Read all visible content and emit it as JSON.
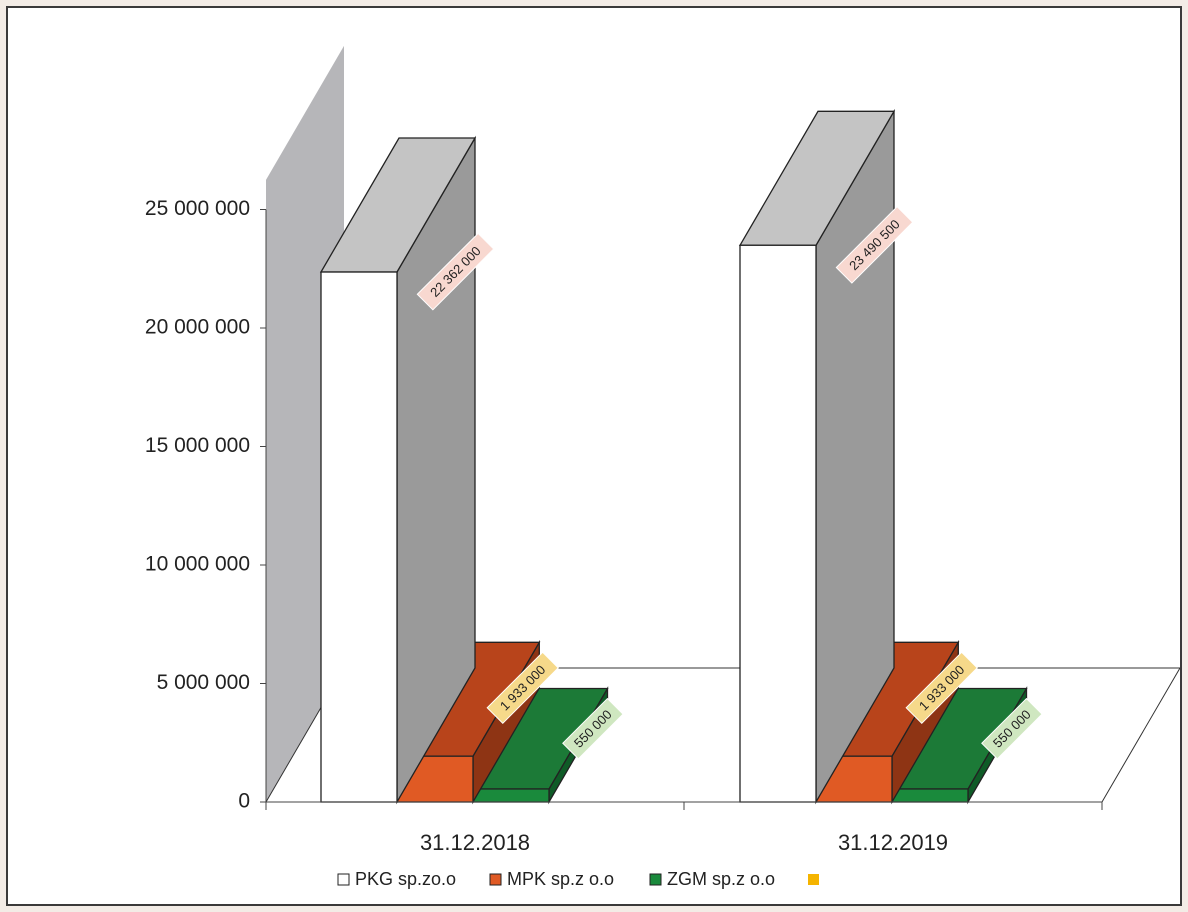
{
  "chart_data": {
    "type": "bar",
    "style": "3d-clustered-column",
    "categories": [
      "31.12.2018",
      "31.12.2019"
    ],
    "series": [
      {
        "name": "PKG sp.zo.o",
        "values": [
          22362000,
          23490500
        ],
        "labels": [
          "22 362 000",
          "23 490 500"
        ],
        "color": "#ffffff",
        "side_color": "#9a9a9a",
        "top_color": "#c4c4c4",
        "label_bg": "#f8d8d0"
      },
      {
        "name": "MPK sp.z o.o",
        "values": [
          1933000,
          1933000
        ],
        "labels": [
          "1 933 000",
          "1 933 000"
        ],
        "color": "#e05a24",
        "side_color": "#8e3414",
        "top_color": "#b8441b",
        "label_bg": "#f6d98a"
      },
      {
        "name": "ZGM sp.z o.o",
        "values": [
          550000,
          550000
        ],
        "labels": [
          "550 000",
          "550 000"
        ],
        "color": "#1a8a3c",
        "side_color": "#0f5b27",
        "top_color": "#1c7a37",
        "label_bg": "#cfe7c0"
      },
      {
        "name": "",
        "values": [
          0,
          0
        ],
        "labels": [
          "",
          ""
        ],
        "color": "#f5b400"
      }
    ],
    "yticks": [
      "0",
      "5 000 000",
      "10 000 000",
      "15 000 000",
      "20 000 000",
      "25 000 000"
    ],
    "ytick_values": [
      0,
      5000000,
      10000000,
      15000000,
      20000000,
      25000000
    ],
    "ylim": [
      0,
      25000000
    ],
    "title": "",
    "xlabel": "",
    "ylabel": "",
    "legend_position": "bottom",
    "grid": false
  }
}
